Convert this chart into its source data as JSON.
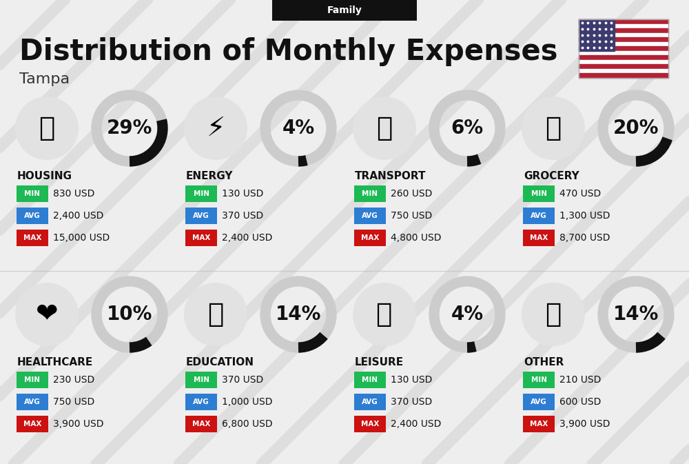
{
  "title": "Distribution of Monthly Expenses",
  "subtitle": "Tampa",
  "header_label": "Family",
  "bg_color": "#eeeeee",
  "categories": [
    {
      "name": "HOUSING",
      "pct": 29,
      "min": "830 USD",
      "avg": "2,400 USD",
      "max": "15,000 USD",
      "row": 0,
      "col": 0
    },
    {
      "name": "ENERGY",
      "pct": 4,
      "min": "130 USD",
      "avg": "370 USD",
      "max": "2,400 USD",
      "row": 0,
      "col": 1
    },
    {
      "name": "TRANSPORT",
      "pct": 6,
      "min": "260 USD",
      "avg": "750 USD",
      "max": "4,800 USD",
      "row": 0,
      "col": 2
    },
    {
      "name": "GROCERY",
      "pct": 20,
      "min": "470 USD",
      "avg": "1,300 USD",
      "max": "8,700 USD",
      "row": 0,
      "col": 3
    },
    {
      "name": "HEALTHCARE",
      "pct": 10,
      "min": "230 USD",
      "avg": "750 USD",
      "max": "3,900 USD",
      "row": 1,
      "col": 0
    },
    {
      "name": "EDUCATION",
      "pct": 14,
      "min": "370 USD",
      "avg": "1,000 USD",
      "max": "6,800 USD",
      "row": 1,
      "col": 1
    },
    {
      "name": "LEISURE",
      "pct": 4,
      "min": "130 USD",
      "avg": "370 USD",
      "max": "2,400 USD",
      "row": 1,
      "col": 2
    },
    {
      "name": "OTHER",
      "pct": 14,
      "min": "210 USD",
      "avg": "600 USD",
      "max": "3,900 USD",
      "row": 1,
      "col": 3
    }
  ],
  "min_color": "#1db954",
  "avg_color": "#2d7dd2",
  "max_color": "#cc1111",
  "donut_filled_color": "#111111",
  "donut_empty_color": "#cccccc",
  "title_fontsize": 30,
  "subtitle_fontsize": 16,
  "pct_fontsize": 20,
  "cat_fontsize": 11,
  "val_fontsize": 10,
  "badge_fontsize": 7.5,
  "header_fontsize": 10,
  "stripe_color": "#d0d0d0",
  "stripe_alpha": 0.5,
  "stripe_lw": 12
}
